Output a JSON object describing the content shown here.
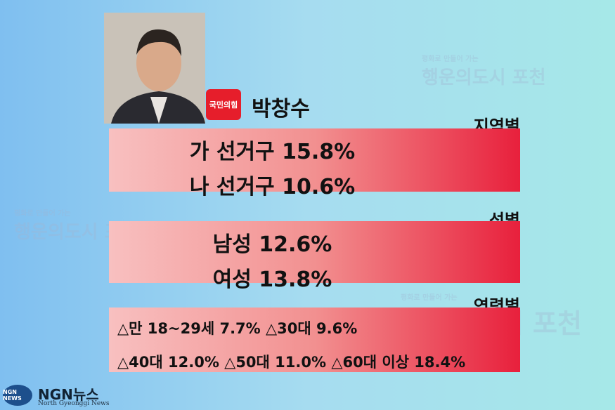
{
  "candidate": {
    "party": "국민의힘",
    "name": "박창수"
  },
  "sections": [
    {
      "label": "지역별",
      "lines": [
        "가 선거구 15.8%",
        "나 선거구 10.6%"
      ]
    },
    {
      "label": "성별",
      "lines": [
        "남성 12.6%",
        "여성 13.8%"
      ]
    },
    {
      "label": "연령별",
      "lines": [
        "△만 18~29세 7.7% △30대 9.6%",
        "△40대 12.0% △50대 11.0% △60대 이상 18.4%"
      ]
    }
  ],
  "watermark": {
    "slogan": "평화로 만들어 가는",
    "title": "행운의도시 포천"
  },
  "logo": {
    "name": "NGN뉴스",
    "subtitle": "North Gyeonggi News",
    "badge": "NGN NEWS"
  }
}
